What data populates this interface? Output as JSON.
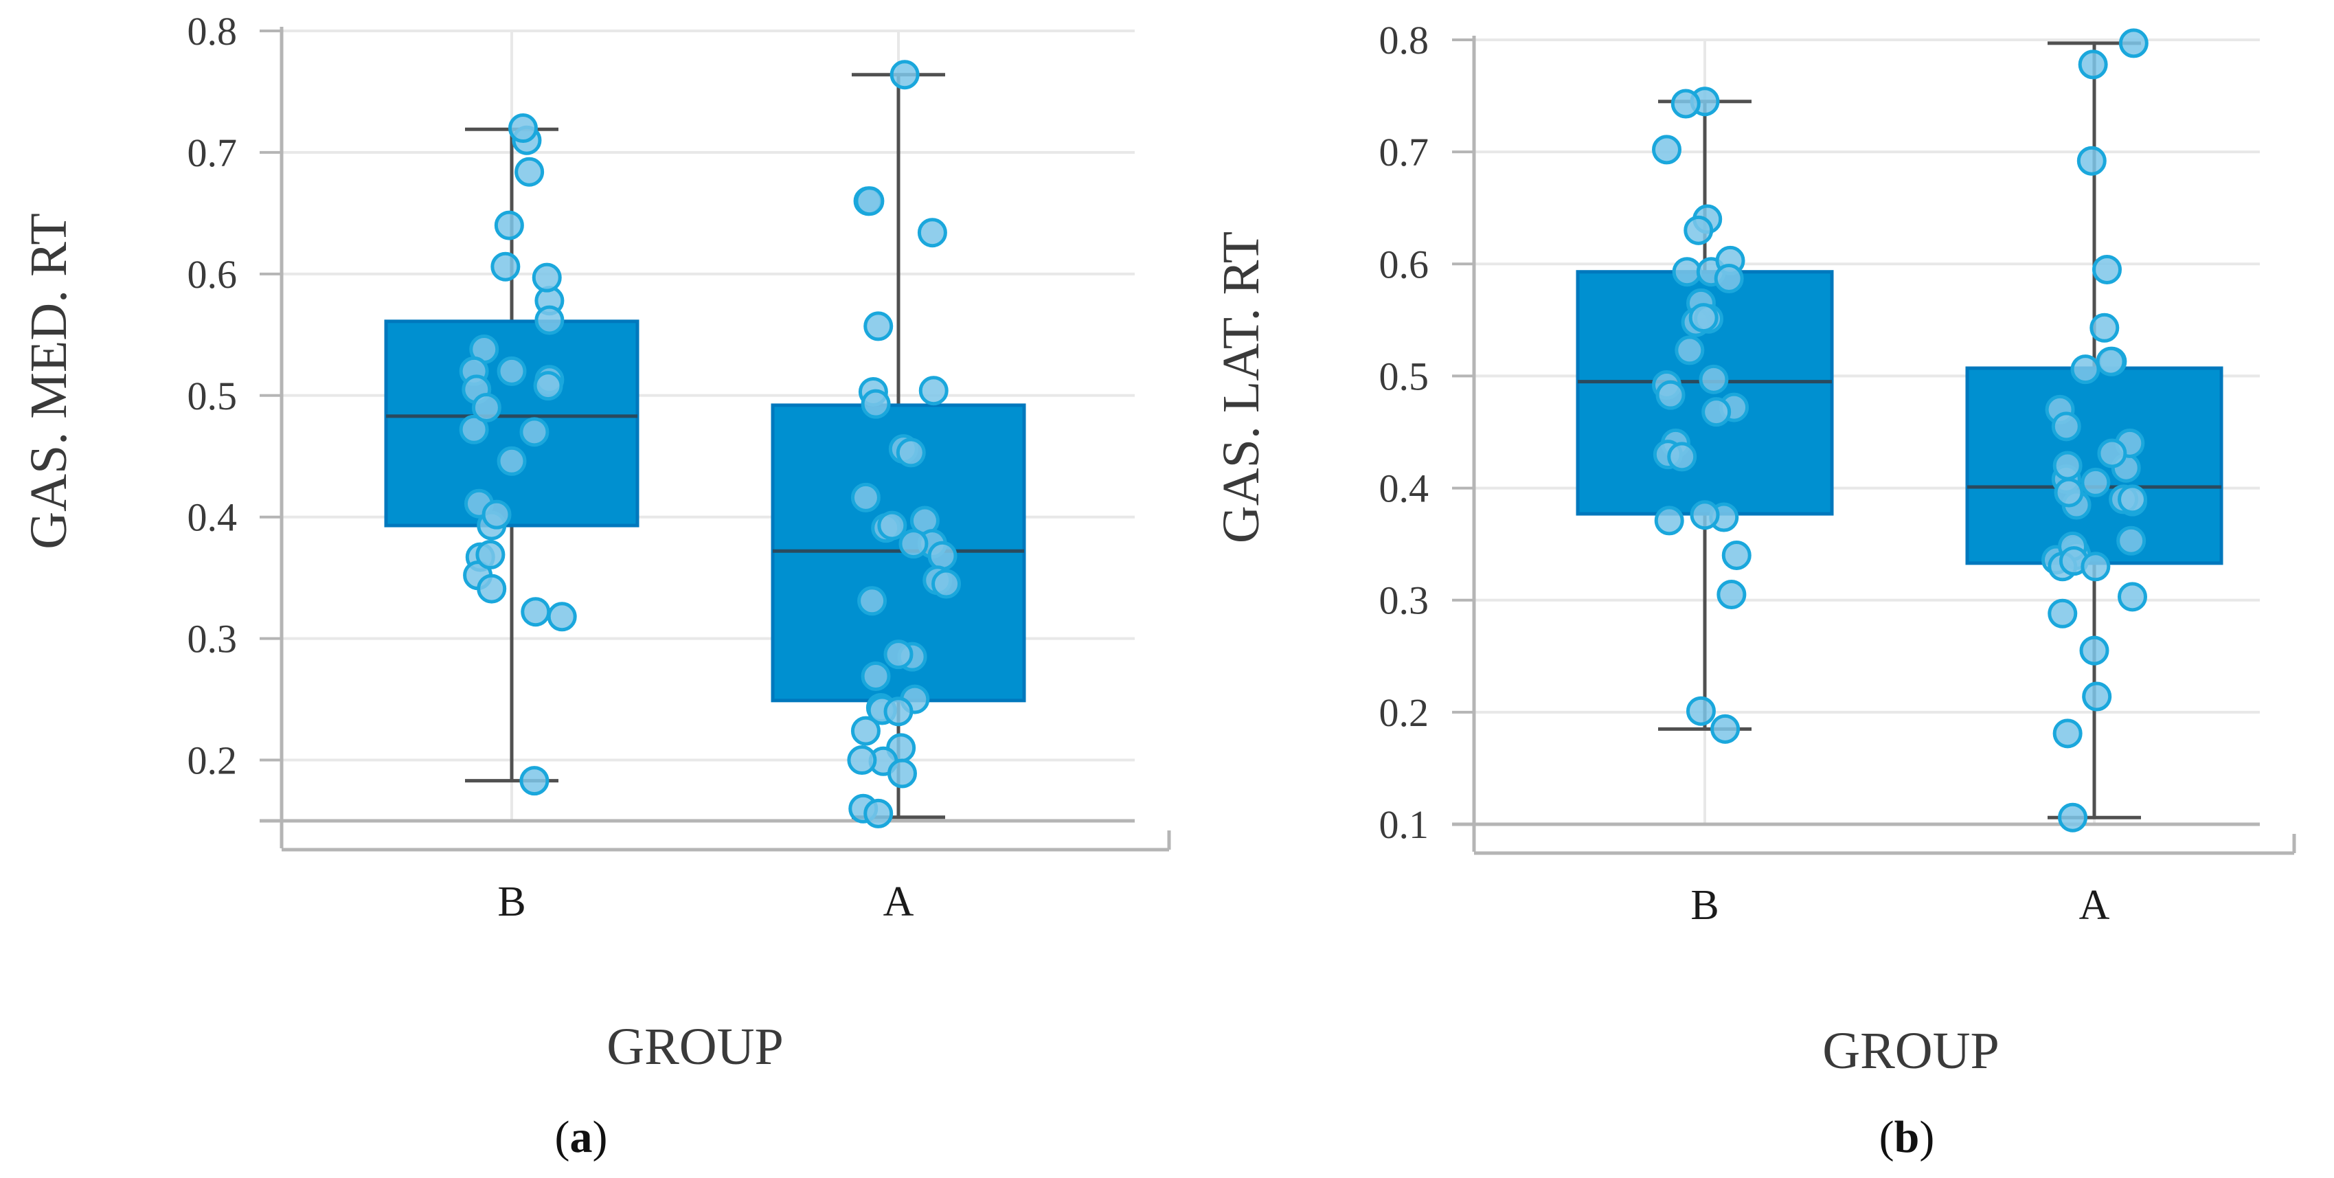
{
  "colors": {
    "box_fill": "#0090d0",
    "box_stroke": "#0078bd",
    "point_fill": "#7cc6e9",
    "point_stroke": "#1aa7dc",
    "whisker": "#505050",
    "grid": "#e8e8e8",
    "axis": "#b5b5b5"
  },
  "chart_data": [
    {
      "type": "box",
      "panel_label": "a",
      "panel_label_prefix": "(",
      "panel_label_suffix": ")",
      "title": "",
      "xlabel": "GROUP",
      "ylabel": "GAS. MED. RT",
      "ylim": [
        0.15,
        0.8
      ],
      "yticks": [
        0.2,
        0.3,
        0.4,
        0.5,
        0.6,
        0.7,
        0.8
      ],
      "ytick_labels": [
        "0.2",
        "0.3",
        "0.4",
        "0.5",
        "0.6",
        "0.7",
        "0.8"
      ],
      "grid": true,
      "categories": [
        "B",
        "A"
      ],
      "boxes": [
        {
          "category": "B",
          "whisker_low": 0.183,
          "q1": 0.393,
          "median": 0.483,
          "q3": 0.561,
          "whisker_high": 0.719
        },
        {
          "category": "A",
          "whisker_low": 0.153,
          "q1": 0.249,
          "median": 0.372,
          "q3": 0.492,
          "whisker_high": 0.764
        }
      ],
      "points": [
        {
          "category": "B",
          "jitter": [
            0.12,
            0.09,
            -0.02,
            0.3,
            -0.22,
            -0.3,
            0.3,
            0.29,
            -0.28,
            0.18,
            -0.3,
            -0.05,
            0.28,
            -0.2,
            0.3,
            0.14,
            -0.26,
            0.0,
            -0.16,
            -0.12,
            -0.25,
            -0.27,
            -0.16,
            -0.17,
            0.4,
            0.19,
            0.18,
            0.0
          ],
          "values": [
            0.71,
            0.72,
            0.64,
            0.578,
            0.538,
            0.52,
            0.513,
            0.508,
            0.505,
            0.47,
            0.472,
            0.606,
            0.597,
            0.49,
            0.562,
            0.684,
            0.411,
            0.446,
            0.393,
            0.402,
            0.367,
            0.352,
            0.341,
            0.369,
            0.318,
            0.322,
            0.183,
            0.52
          ]
        },
        {
          "category": "A",
          "jitter": [
            0.05,
            -0.24,
            -0.23,
            0.27,
            -0.16,
            0.28,
            -0.2,
            -0.18,
            0.04,
            0.1,
            -0.26,
            -0.1,
            0.21,
            0.27,
            0.35,
            0.31,
            0.38,
            -0.21,
            0.11,
            0.0,
            -0.18,
            0.13,
            -0.14,
            -0.26,
            0.02,
            -0.12,
            0.03,
            -0.28,
            -0.16,
            -0.13,
            0.12,
            0.0,
            -0.29,
            -0.05
          ],
          "values": [
            0.764,
            0.66,
            0.66,
            0.634,
            0.557,
            0.504,
            0.503,
            0.493,
            0.456,
            0.453,
            0.416,
            0.391,
            0.397,
            0.378,
            0.368,
            0.348,
            0.345,
            0.331,
            0.285,
            0.287,
            0.269,
            0.25,
            0.243,
            0.224,
            0.21,
            0.199,
            0.189,
            0.16,
            0.156,
            0.241,
            0.378,
            0.24,
            0.2,
            0.393
          ]
        }
      ]
    },
    {
      "type": "box",
      "panel_label": "b",
      "panel_label_prefix": "(",
      "panel_label_suffix": ")",
      "title": "",
      "xlabel": "GROUP",
      "ylabel": "GAS. LAT. RT",
      "ylim": [
        0.1,
        0.8
      ],
      "yticks": [
        0.1,
        0.2,
        0.3,
        0.4,
        0.5,
        0.6,
        0.7,
        0.8
      ],
      "ytick_labels": [
        "0.1",
        "0.2",
        "0.3",
        "0.4",
        "0.5",
        "0.6",
        "0.7",
        "0.8"
      ],
      "grid": true,
      "categories": [
        "B",
        "A"
      ],
      "boxes": [
        {
          "category": "B",
          "whisker_low": 0.185,
          "q1": 0.377,
          "median": 0.495,
          "q3": 0.593,
          "whisker_high": 0.745
        },
        {
          "category": "A",
          "whisker_low": 0.106,
          "q1": 0.333,
          "median": 0.401,
          "q3": 0.507,
          "whisker_high": 0.797
        }
      ],
      "points": [
        {
          "category": "B",
          "jitter": [
            -0.3,
            0.0,
            -0.15,
            0.02,
            -0.05,
            -0.14,
            0.05,
            0.2,
            0.19,
            -0.03,
            -0.12,
            -0.07,
            0.03,
            -0.01,
            0.07,
            0.23,
            -0.3,
            -0.27,
            -0.23,
            0.09,
            -0.29,
            0.15,
            -0.28,
            0.25,
            0.0,
            0.21,
            -0.03,
            0.16,
            -0.18
          ],
          "values": [
            0.702,
            0.745,
            0.743,
            0.64,
            0.63,
            0.593,
            0.593,
            0.603,
            0.587,
            0.565,
            0.523,
            0.548,
            0.551,
            0.552,
            0.497,
            0.472,
            0.492,
            0.483,
            0.44,
            0.468,
            0.43,
            0.374,
            0.371,
            0.34,
            0.376,
            0.305,
            0.201,
            0.185,
            0.428
          ]
        },
        {
          "category": "A",
          "jitter": [
            -0.01,
            0.31,
            -0.02,
            0.1,
            0.08,
            0.14,
            -0.07,
            0.13,
            0.25,
            0.28,
            0.29,
            -0.27,
            -0.22,
            0.01,
            -0.22,
            0.14,
            -0.3,
            0.3,
            0.23,
            -0.15,
            -0.25,
            0.0,
            -0.21,
            -0.17,
            -0.14,
            -0.14,
            -0.17,
            0.02,
            -0.25,
            -0.2,
            -0.16,
            0.01,
            0.3,
            -0.21,
            0.3
          ],
          "values": [
            0.778,
            0.797,
            0.692,
            0.595,
            0.543,
            0.513,
            0.506,
            0.513,
            0.418,
            0.44,
            0.353,
            0.47,
            0.455,
            0.405,
            0.408,
            0.431,
            0.336,
            0.388,
            0.39,
            0.343,
            0.288,
            0.255,
            0.181,
            0.106,
            0.385,
            0.34,
            0.348,
            0.214,
            0.33,
            0.396,
            0.335,
            0.33,
            0.303,
            0.42,
            0.39
          ]
        }
      ]
    }
  ]
}
